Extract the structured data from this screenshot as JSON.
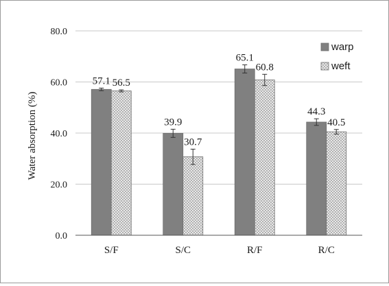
{
  "chart_data": {
    "type": "bar",
    "categories": [
      "S/F",
      "S/C",
      "R/F",
      "R/C"
    ],
    "series": [
      {
        "name": "warp",
        "values": [
          57.1,
          39.9,
          65.1,
          44.3
        ],
        "errors": [
          0.5,
          1.6,
          1.6,
          1.3
        ],
        "labels": [
          "57.1",
          "39.9",
          "65.1",
          "44.3"
        ],
        "color": "#808080",
        "pattern": "solid"
      },
      {
        "name": "weft",
        "values": [
          56.5,
          30.7,
          60.8,
          40.5
        ],
        "errors": [
          0.4,
          3.0,
          2.2,
          0.9
        ],
        "labels": [
          "56.5",
          "30.7",
          "60.8",
          "40.5"
        ],
        "color": "#d8d8d8",
        "pattern": "crosshatch"
      }
    ],
    "title": "",
    "xlabel": "",
    "ylabel": "Water absorption (%)",
    "ylim": [
      0,
      80
    ],
    "yticks": [
      0,
      20,
      40,
      60,
      80
    ],
    "ytick_labels": [
      "0.0",
      "20.0",
      "40.0",
      "60.0",
      "80.0"
    ],
    "grid": true,
    "legend_position": "top-right",
    "colors": {
      "gridline": "#c8c8c8",
      "axis": "#555555",
      "error_bar": "#333333"
    }
  }
}
